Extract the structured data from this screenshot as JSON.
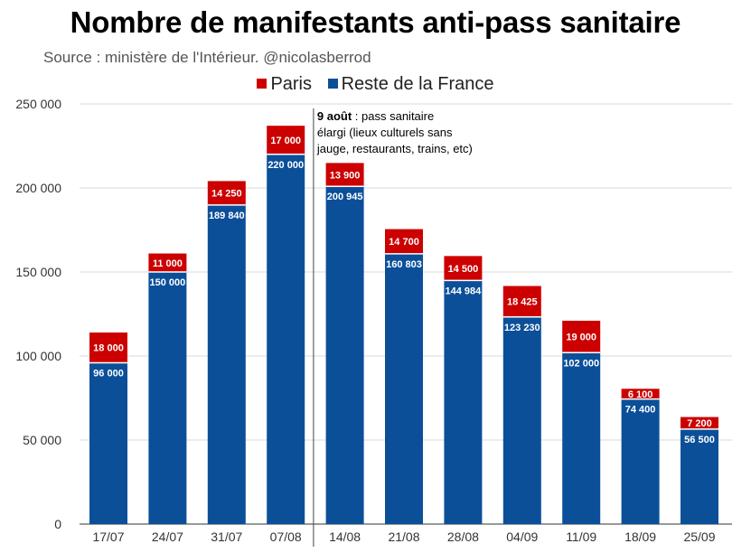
{
  "title": "Nombre de manifestants anti-pass sanitaire",
  "subtitle": "Source : ministère de l'Intérieur. @nicolasberrod",
  "chart_data": {
    "type": "bar",
    "stacked": true,
    "categories": [
      "17/07",
      "24/07",
      "31/07",
      "07/08",
      "14/08",
      "21/08",
      "28/08",
      "04/09",
      "11/09",
      "18/09",
      "25/09"
    ],
    "series": [
      {
        "name": "Reste de la France",
        "color": "#0b4f99",
        "values": [
          96000,
          150000,
          189840,
          220000,
          200945,
          160803,
          144984,
          123230,
          102000,
          74400,
          56500
        ],
        "labels": [
          "96 000",
          "150 000",
          "189 840",
          "220 000",
          "200 945",
          "160 803",
          "144 984",
          "123 230",
          "102 000",
          "74 400",
          "56 500"
        ]
      },
      {
        "name": "Paris",
        "color": "#cc0000",
        "values": [
          18000,
          11000,
          14250,
          17000,
          13900,
          14700,
          14500,
          18425,
          19000,
          6100,
          7200
        ],
        "labels": [
          "18 000",
          "11 000",
          "14 250",
          "17 000",
          "13 900",
          "14 700",
          "14 500",
          "18 425",
          "19 000",
          "6 100",
          "7 200"
        ]
      }
    ],
    "ylim": [
      0,
      250000
    ],
    "yticks": [
      0,
      50000,
      100000,
      150000,
      200000,
      250000
    ],
    "ytick_labels": [
      "0",
      "50 000",
      "100 000",
      "150 000",
      "200 000",
      "250 000"
    ],
    "grid": true,
    "legend_position": "top",
    "annotation": {
      "after_category": "07/08",
      "bold": "9 août",
      "lines": [
        " : pass sanitaire",
        "élargi (lieux culturels sans",
        "jauge, restaurants, trains, etc)"
      ]
    }
  }
}
